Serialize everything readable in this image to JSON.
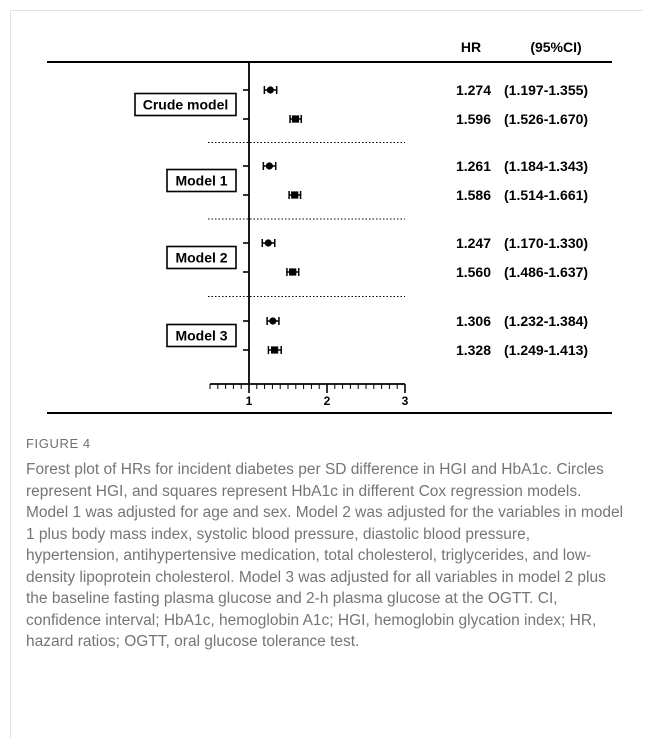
{
  "chart_data": {
    "type": "forest",
    "columns": {
      "hr": "HR",
      "ci": "(95%CI)"
    },
    "xlim": [
      0,
      3
    ],
    "x_ticks": [
      "1",
      "2",
      "3"
    ],
    "reference_line": 1,
    "marker_legend": {
      "circle": "HGI",
      "square": "HbA1c"
    },
    "groups": [
      {
        "label": "Crude model",
        "rows": [
          {
            "marker": "circle",
            "hr": 1.274,
            "lo": 1.197,
            "hi": 1.355,
            "hr_text": "1.274",
            "ci_text": "(1.197-1.355)"
          },
          {
            "marker": "square",
            "hr": 1.596,
            "lo": 1.526,
            "hi": 1.67,
            "hr_text": "1.596",
            "ci_text": "(1.526-1.670)"
          }
        ]
      },
      {
        "label": "Model 1",
        "rows": [
          {
            "marker": "circle",
            "hr": 1.261,
            "lo": 1.184,
            "hi": 1.343,
            "hr_text": "1.261",
            "ci_text": "(1.184-1.343)"
          },
          {
            "marker": "square",
            "hr": 1.586,
            "lo": 1.514,
            "hi": 1.661,
            "hr_text": "1.586",
            "ci_text": "(1.514-1.661)"
          }
        ]
      },
      {
        "label": "Model 2",
        "rows": [
          {
            "marker": "circle",
            "hr": 1.247,
            "lo": 1.17,
            "hi": 1.33,
            "hr_text": "1.247",
            "ci_text": "(1.170-1.330)"
          },
          {
            "marker": "square",
            "hr": 1.56,
            "lo": 1.486,
            "hi": 1.637,
            "hr_text": "1.560",
            "ci_text": "(1.486-1.637)"
          }
        ]
      },
      {
        "label": "Model 3",
        "rows": [
          {
            "marker": "circle",
            "hr": 1.306,
            "lo": 1.232,
            "hi": 1.384,
            "hr_text": "1.306",
            "ci_text": "(1.232-1.384)"
          },
          {
            "marker": "square",
            "hr": 1.328,
            "lo": 1.249,
            "hi": 1.413,
            "hr_text": "1.328",
            "ci_text": "(1.249-1.413)"
          }
        ]
      }
    ]
  },
  "caption": {
    "label": "FIGURE 4",
    "text": "Forest plot of HRs for incident diabetes per SD difference in HGI and HbA1c. Circles represent HGI, and squares represent HbA1c in different Cox regression models. Model 1 was adjusted for age and sex. Model 2 was adjusted for the variables in model 1 plus body mass index, systolic blood pressure, diastolic blood pressure, hypertension, antihypertensive medication, total cholesterol, triglycerides, and low-density lipoprotein cholesterol. Model 3 was adjusted for all variables in model 2 plus the baseline fasting plasma glucose and 2-h plasma glucose at the OGTT. CI, confidence interval; HbA1c, hemoglobin A1c; HGI, hemoglobin glycation index; HR, hazard ratios; OGTT, oral glucose tolerance test."
  }
}
